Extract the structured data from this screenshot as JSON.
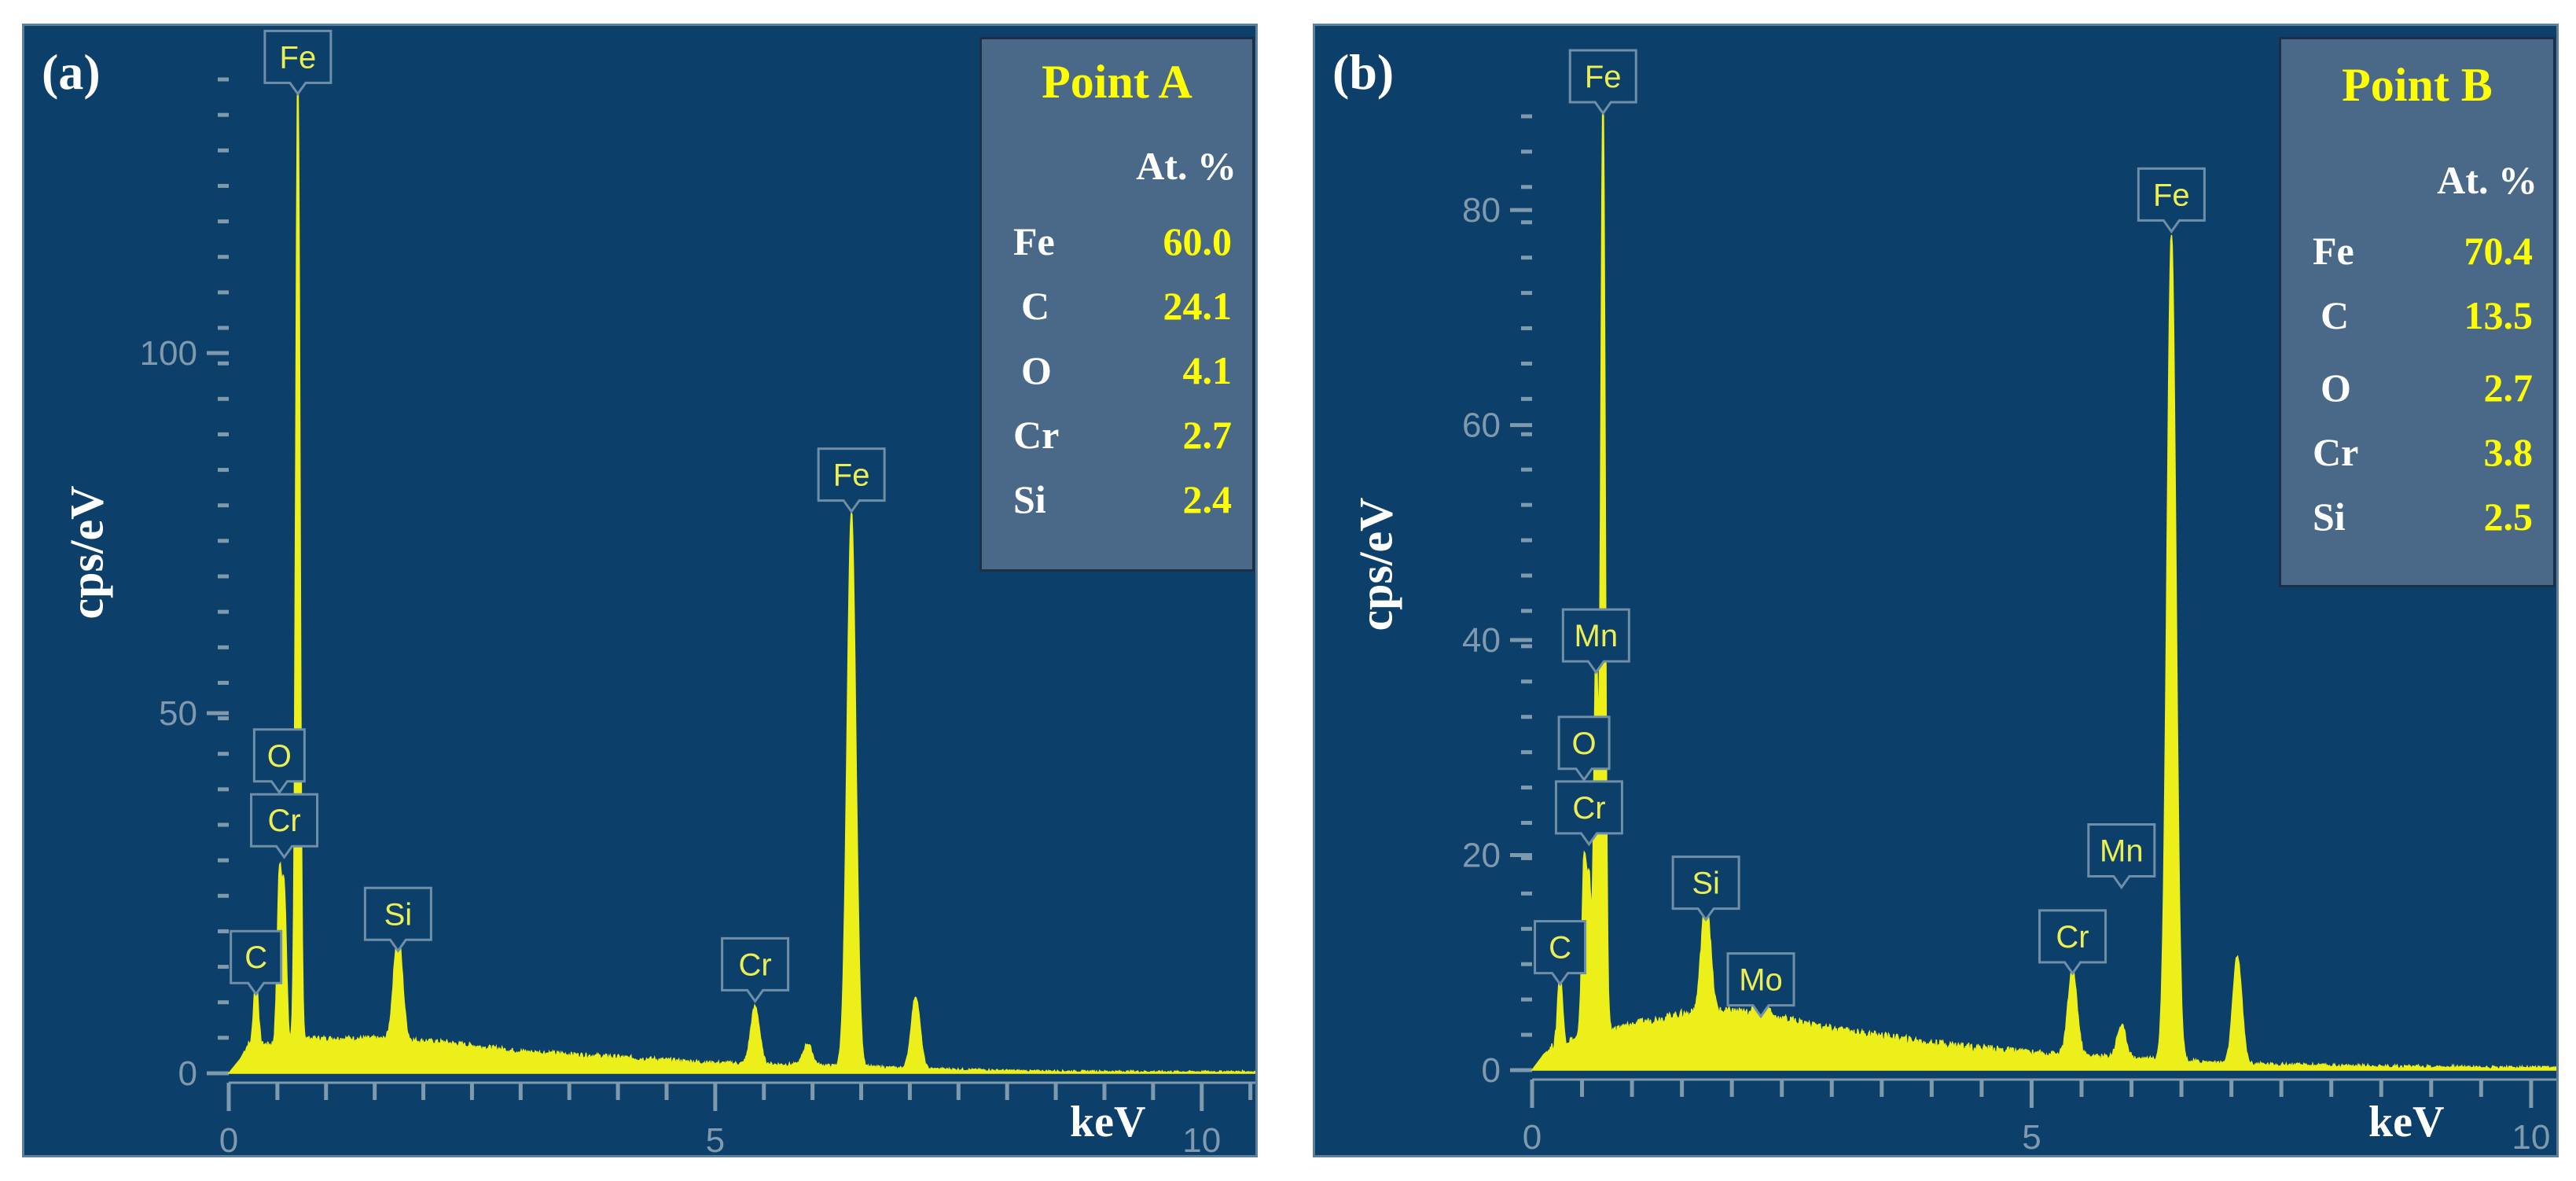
{
  "chart_data": [
    {
      "type": "line",
      "panel_label": "(a)",
      "ylabel": "cps/eV",
      "xlabel": "keV",
      "xlim": [
        0,
        10.6
      ],
      "ylim": [
        0,
        138
      ],
      "x_ticks": [
        0,
        5,
        10
      ],
      "y_ticks": [
        0,
        50,
        100
      ],
      "baseline": [
        [
          0,
          0
        ],
        [
          0.12,
          2
        ],
        [
          0.2,
          4
        ],
        [
          0.45,
          4
        ],
        [
          0.8,
          4.8
        ],
        [
          1.5,
          4.8
        ],
        [
          2.2,
          4.3
        ],
        [
          3,
          3
        ],
        [
          4,
          2.2
        ],
        [
          5,
          1.4
        ],
        [
          6,
          1.1
        ],
        [
          7.2,
          0.6
        ],
        [
          8.2,
          0.3
        ],
        [
          9.5,
          0.2
        ],
        [
          10.6,
          0.2
        ]
      ],
      "peaks": [
        {
          "element": "C",
          "energy": 0.28,
          "cps": 10
        },
        {
          "element": "O",
          "energy": 0.52,
          "cps": 23
        },
        {
          "element": "Cr",
          "energy": 0.57,
          "cps": 21
        },
        {
          "element": "Fe",
          "energy": 0.71,
          "cps": 135
        },
        {
          "element": "Si",
          "energy": 1.74,
          "cps": 15
        },
        {
          "element": "Cr",
          "energy": 5.41,
          "cps": 8
        },
        {
          "element": "",
          "energy": 5.95,
          "cps": 3
        },
        {
          "element": "Fe",
          "energy": 6.4,
          "cps": 77
        },
        {
          "element": "",
          "energy": 7.06,
          "cps": 10
        }
      ],
      "tags": [
        {
          "text": "Fe",
          "energy": 0.71,
          "cps": 136
        },
        {
          "text": "Fe",
          "energy": 6.4,
          "cps": 78
        },
        {
          "text": "O",
          "energy": 0.52,
          "cps": 39
        },
        {
          "text": "Cr",
          "energy": 0.57,
          "cps": 30
        },
        {
          "text": "C",
          "energy": 0.28,
          "cps": 11
        },
        {
          "text": "Si",
          "energy": 1.74,
          "cps": 17
        },
        {
          "text": "Cr",
          "energy": 5.41,
          "cps": 10
        }
      ],
      "composition": {
        "title": "Point A",
        "unit": "At. %",
        "rows": [
          {
            "element": "Fe",
            "value": "60.0"
          },
          {
            "element": "C",
            "value": "24.1"
          },
          {
            "element": "O",
            "value": "4.1"
          },
          {
            "element": "Cr",
            "value": "2.7"
          },
          {
            "element": "Si",
            "value": "2.4"
          }
        ]
      }
    },
    {
      "type": "line",
      "panel_label": "(b)",
      "ylabel": "cps/eV",
      "xlabel": "keV",
      "xlim": [
        0,
        10.3
      ],
      "ylim": [
        0,
        92
      ],
      "x_ticks": [
        0,
        5,
        10
      ],
      "y_ticks": [
        0,
        20,
        40,
        60,
        80
      ],
      "baseline": [
        [
          0,
          0
        ],
        [
          0.12,
          1.5
        ],
        [
          0.25,
          2.5
        ],
        [
          0.5,
          3
        ],
        [
          1,
          4.2
        ],
        [
          1.5,
          5.2
        ],
        [
          2,
          5.5
        ],
        [
          2.5,
          4.8
        ],
        [
          3,
          3.8
        ],
        [
          4,
          2.5
        ],
        [
          5,
          1.6
        ],
        [
          6,
          1.1
        ],
        [
          7,
          0.6
        ],
        [
          8,
          0.4
        ],
        [
          9,
          0.3
        ],
        [
          10.3,
          0.2
        ]
      ],
      "peaks": [
        {
          "element": "C",
          "energy": 0.28,
          "cps": 7
        },
        {
          "element": "O",
          "energy": 0.52,
          "cps": 16
        },
        {
          "element": "Cr",
          "energy": 0.57,
          "cps": 14
        },
        {
          "element": "Mn",
          "energy": 0.64,
          "cps": 36
        },
        {
          "element": "Fe",
          "energy": 0.71,
          "cps": 88
        },
        {
          "element": "Si",
          "energy": 1.74,
          "cps": 11
        },
        {
          "element": "Mo",
          "energy": 2.29,
          "cps": 5
        },
        {
          "element": "Cr",
          "energy": 5.41,
          "cps": 8
        },
        {
          "element": "Mn",
          "energy": 5.9,
          "cps": 3
        },
        {
          "element": "Fe",
          "energy": 6.4,
          "cps": 77
        },
        {
          "element": "",
          "energy": 7.06,
          "cps": 10
        }
      ],
      "tags": [
        {
          "text": "Fe",
          "energy": 0.71,
          "cps": 89
        },
        {
          "text": "Fe",
          "energy": 6.4,
          "cps": 78
        },
        {
          "text": "Mn",
          "energy": 0.64,
          "cps": 37
        },
        {
          "text": "O",
          "energy": 0.52,
          "cps": 27
        },
        {
          "text": "Cr",
          "energy": 0.57,
          "cps": 21
        },
        {
          "text": "C",
          "energy": 0.28,
          "cps": 8
        },
        {
          "text": "Si",
          "energy": 1.74,
          "cps": 14
        },
        {
          "text": "Mo",
          "energy": 2.29,
          "cps": 5
        },
        {
          "text": "Cr",
          "energy": 5.41,
          "cps": 9
        },
        {
          "text": "Mn",
          "energy": 5.9,
          "cps": 17
        }
      ],
      "composition": {
        "title": "Point B",
        "unit": "At. %",
        "rows": [
          {
            "element": "Fe",
            "value": "70.4"
          },
          {
            "element": "C",
            "value": "13.5"
          },
          {
            "element": "O",
            "value": "2.7"
          },
          {
            "element": "Cr",
            "value": "3.8"
          },
          {
            "element": "Si",
            "value": "2.5"
          }
        ]
      }
    }
  ],
  "colors": {
    "background": "#0d3f6b",
    "spectrum": "#ecef1a",
    "axis": "#7f99ad",
    "tag_text": "#ecef54",
    "box_fill": "#4a6989",
    "highlight": "#ffff00"
  }
}
